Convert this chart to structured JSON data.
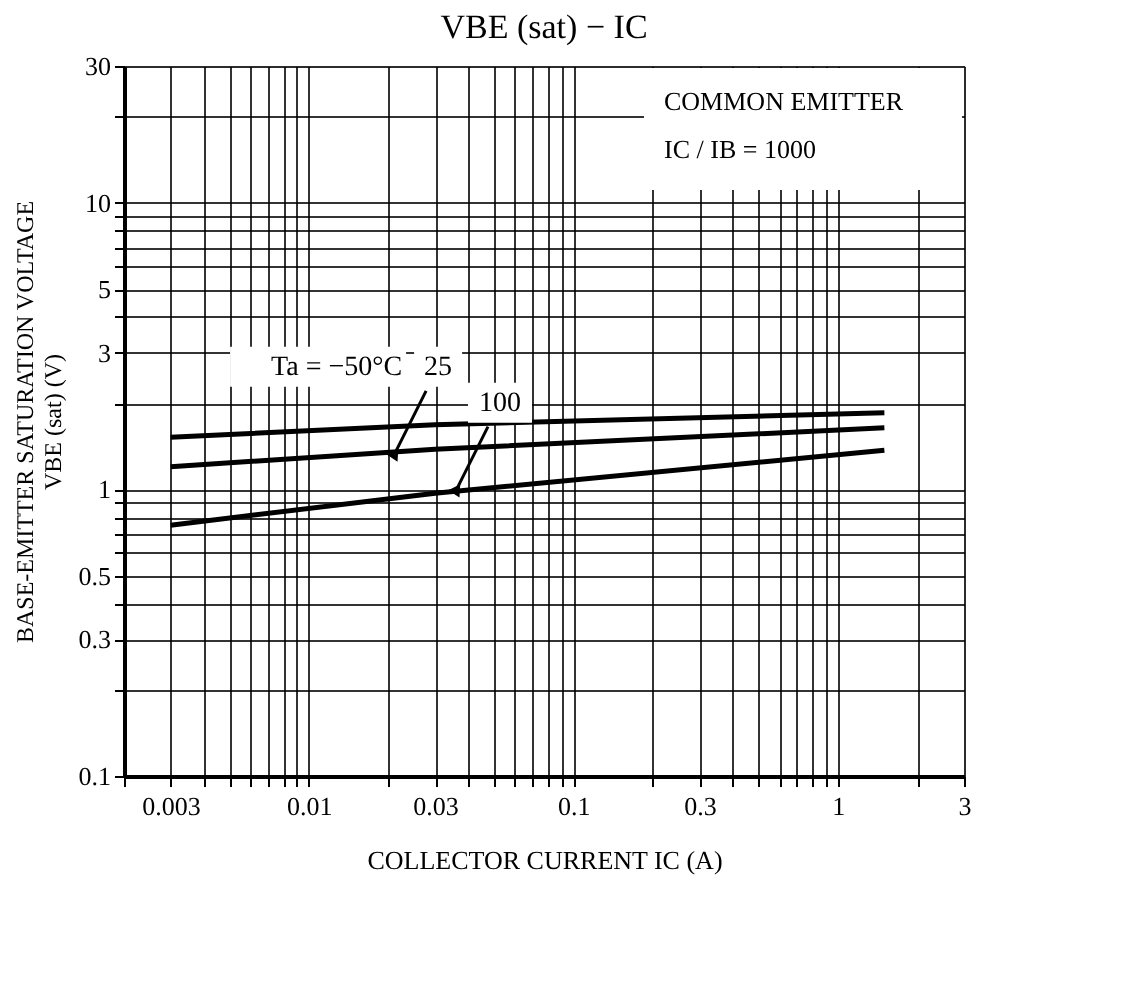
{
  "chart_data": {
    "type": "line",
    "title": "VBE (sat) − IC",
    "xlabel": "COLLECTOR CURRENT   IC   (A)",
    "ylabel": "BASE-EMITTER SATURATION VOLTAGE\nVBE (sat)   (V)",
    "x": [
      0.003,
      0.03,
      1.5
    ],
    "series": [
      {
        "color": "#000000",
        "values": [
          1.52,
          1.68,
          1.85
        ]
      },
      {
        "color": "#000000",
        "values": [
          1.2,
          1.38,
          1.64
        ]
      },
      {
        "color": "#000000",
        "values": [
          0.75,
          0.97,
          1.37
        ]
      }
    ],
    "annotations": [
      "Ta = −50°C",
      {
        "text": "25",
        "x": 0.021,
        "y": 1.32
      },
      {
        "text": "100",
        "x": 0.036,
        "y": 0.99
      },
      "COMMON EMITTER",
      "IC / IB = 1000"
    ],
    "log": "xy",
    "grid": true,
    "line_style": "solid",
    "marker": "none",
    "xlim": [
      0.002,
      3
    ],
    "ylim": [
      0.1,
      30
    ],
    "xticks": [
      {
        "value": 0.002,
        "label": null
      },
      0.003,
      {
        "value": 0.004,
        "label": null
      },
      {
        "value": 0.005,
        "label": null
      },
      {
        "value": 0.006,
        "label": null
      },
      {
        "value": 0.007,
        "label": null
      },
      {
        "value": 0.008,
        "label": null
      },
      {
        "value": 0.009,
        "label": null
      },
      0.01,
      {
        "value": 0.02,
        "label": null
      },
      0.03,
      {
        "value": 0.04,
        "label": null
      },
      {
        "value": 0.05,
        "label": null
      },
      {
        "value": 0.06,
        "label": null
      },
      {
        "value": 0.07,
        "label": null
      },
      {
        "value": 0.08,
        "label": null
      },
      {
        "value": 0.09,
        "label": null
      },
      0.1,
      {
        "value": 0.2,
        "label": null
      },
      0.3,
      {
        "value": 0.4,
        "label": null
      },
      {
        "value": 0.5,
        "label": null
      },
      {
        "value": 0.6,
        "label": null
      },
      {
        "value": 0.7,
        "label": null
      },
      {
        "value": 0.8,
        "label": null
      },
      {
        "value": 0.9,
        "label": null
      },
      1,
      {
        "value": 2,
        "label": null
      },
      3
    ],
    "yticks": [
      0.1,
      {
        "value": 0.2,
        "label": null
      },
      0.3,
      {
        "value": 0.4,
        "label": null
      },
      0.5,
      {
        "value": 0.6,
        "label": null
      },
      {
        "value": 0.7,
        "label": null
      },
      {
        "value": 0.8,
        "label": null
      },
      {
        "value": 0.9,
        "label": null
      },
      1,
      {
        "value": 2,
        "label": null
      },
      3,
      {
        "value": 4,
        "label": null
      },
      5,
      {
        "value": 6,
        "label": null
      },
      {
        "value": 7,
        "label": null
      },
      {
        "value": 8,
        "label": null
      },
      {
        "value": 9,
        "label": null
      },
      10,
      {
        "value": 20,
        "label": null
      },
      30
    ]
  }
}
